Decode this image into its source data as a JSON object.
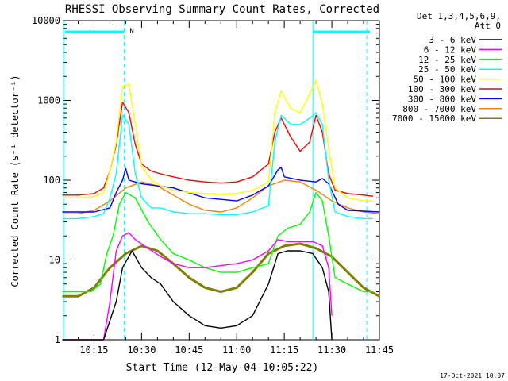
{
  "chart_data": {
    "type": "line",
    "title": "RHESSI Observing Summary Count Rates, Corrected",
    "xlabel": "Start Time (12-May-04 10:05:22)",
    "ylabel": "Corrected Count Rate (s⁻¹ detector⁻¹)",
    "footer": "17-Oct-2021 10:07",
    "y_scale": "log",
    "ylim": [
      1,
      10000
    ],
    "xlim": [
      "10:05:22",
      "11:45:00"
    ],
    "x_ticks": [
      "10:15",
      "10:30",
      "10:45",
      "11:00",
      "11:15",
      "11:30",
      "11:45"
    ],
    "y_ticks": [
      "1",
      "10",
      "100",
      "1000",
      "10000"
    ],
    "legend": {
      "placement": "right",
      "header": [
        "Det 1,3,4,5,6,9,",
        "Att 0"
      ]
    },
    "markers": {
      "dashed_lines": [
        "10:24:30",
        "11:41:00"
      ],
      "solid_lines": [
        "10:05:22",
        "11:24:00"
      ],
      "flag_label": "N"
    },
    "series": [
      {
        "name": "3 - 6 keV",
        "color": "#000000",
        "x": [
          "10:05",
          "10:14",
          "10:18",
          "10:22",
          "10:24",
          "10:27",
          "10:30",
          "10:33",
          "10:36",
          "10:40",
          "10:45",
          "10:50",
          "10:55",
          "11:00",
          "11:05",
          "11:10",
          "11:13",
          "11:16",
          "11:20",
          "11:24",
          "11:27",
          "11:29",
          "11:30"
        ],
        "y": [
          1,
          1,
          1,
          3,
          8,
          13,
          8,
          6,
          5,
          3,
          2,
          1.5,
          1.4,
          1.5,
          2,
          5,
          12,
          13,
          13,
          12,
          8,
          4,
          1
        ]
      },
      {
        "name": "6 - 12 keV",
        "color": "#ff00ff",
        "x": [
          "10:05",
          "10:14",
          "10:18",
          "10:20",
          "10:22",
          "10:24",
          "10:26",
          "10:28",
          "10:32",
          "10:36",
          "10:40",
          "10:45",
          "10:50",
          "10:55",
          "11:00",
          "11:05",
          "11:10",
          "11:13",
          "11:16",
          "11:20",
          "11:24",
          "11:27",
          "11:29",
          "11:30"
        ],
        "y": [
          1,
          1,
          1,
          3,
          13,
          20,
          22,
          18,
          14,
          11,
          9,
          8,
          8,
          8.5,
          9,
          10,
          13,
          18,
          17,
          17,
          17,
          15,
          8,
          2
        ]
      },
      {
        "name": "12 - 25 keV",
        "color": "#00ff00",
        "x": [
          "10:05",
          "10:10",
          "10:14",
          "10:17",
          "10:19",
          "10:21",
          "10:23",
          "10:25",
          "10:28",
          "10:32",
          "10:36",
          "10:40",
          "10:45",
          "10:50",
          "10:55",
          "11:00",
          "11:05",
          "11:10",
          "11:13",
          "11:16",
          "11:20",
          "11:23",
          "11:25",
          "11:27",
          "11:29",
          "11:31",
          "11:35",
          "11:40",
          "11:43"
        ],
        "y": [
          4,
          4,
          4,
          5,
          12,
          20,
          50,
          70,
          60,
          30,
          18,
          12,
          10,
          8,
          7,
          7,
          8,
          9,
          20,
          25,
          28,
          40,
          70,
          55,
          20,
          6,
          5,
          4,
          4
        ]
      },
      {
        "name": "25 - 50 keV",
        "color": "#00ffff",
        "x": [
          "10:05",
          "10:10",
          "10:15",
          "10:18",
          "10:20",
          "10:22",
          "10:24",
          "10:26",
          "10:28",
          "10:30",
          "10:33",
          "10:36",
          "10:40",
          "10:45",
          "10:50",
          "10:55",
          "11:00",
          "11:05",
          "11:10",
          "11:12",
          "11:14",
          "11:17",
          "11:20",
          "11:23",
          "11:25",
          "11:27",
          "11:29",
          "11:31",
          "11:35",
          "11:40",
          "11:43"
        ],
        "y": [
          33,
          33,
          35,
          38,
          60,
          120,
          650,
          500,
          120,
          60,
          45,
          45,
          40,
          38,
          38,
          37,
          37,
          40,
          48,
          300,
          650,
          500,
          500,
          600,
          700,
          500,
          100,
          40,
          35,
          33,
          33
        ]
      },
      {
        "name": "50 - 100 keV",
        "color": "#ffff00",
        "x": [
          "10:05",
          "10:10",
          "10:15",
          "10:18",
          "10:20",
          "10:22",
          "10:24",
          "10:26",
          "10:28",
          "10:30",
          "10:33",
          "10:36",
          "10:40",
          "10:45",
          "10:50",
          "10:55",
          "11:00",
          "11:05",
          "11:10",
          "11:12",
          "11:14",
          "11:17",
          "11:20",
          "11:23",
          "11:25",
          "11:27",
          "11:29",
          "11:31",
          "11:35",
          "11:40",
          "11:43"
        ],
        "y": [
          60,
          60,
          62,
          70,
          130,
          300,
          1500,
          1600,
          500,
          150,
          100,
          85,
          75,
          70,
          68,
          67,
          68,
          75,
          95,
          700,
          1300,
          800,
          700,
          1200,
          1800,
          900,
          250,
          80,
          60,
          55,
          55
        ]
      },
      {
        "name": "100 - 300 keV",
        "color": "#ff0000",
        "x": [
          "10:05",
          "10:10",
          "10:15",
          "10:18",
          "10:20",
          "10:22",
          "10:24",
          "10:26",
          "10:28",
          "10:30",
          "10:33",
          "10:36",
          "10:40",
          "10:45",
          "10:50",
          "10:55",
          "11:00",
          "11:05",
          "11:10",
          "11:12",
          "11:14",
          "11:17",
          "11:20",
          "11:23",
          "11:25",
          "11:27",
          "11:29",
          "11:31",
          "11:35",
          "11:40",
          "11:43"
        ],
        "y": [
          65,
          65,
          68,
          80,
          130,
          280,
          950,
          700,
          280,
          160,
          130,
          120,
          110,
          100,
          95,
          92,
          95,
          110,
          160,
          400,
          600,
          350,
          230,
          300,
          650,
          400,
          120,
          75,
          68,
          65,
          63
        ]
      },
      {
        "name": "300 - 800 keV",
        "color": "#0000ff",
        "x": [
          "10:05",
          "10:15",
          "10:20",
          "10:22",
          "10:24",
          "10:25",
          "10:26",
          "10:30",
          "10:40",
          "10:50",
          "11:00",
          "11:05",
          "11:10",
          "11:13",
          "11:14",
          "11:15",
          "11:20",
          "11:25",
          "11:27",
          "11:29",
          "11:32",
          "11:35",
          "11:45"
        ],
        "y": [
          40,
          40,
          45,
          70,
          100,
          140,
          100,
          90,
          80,
          60,
          55,
          65,
          85,
          135,
          145,
          110,
          100,
          95,
          105,
          90,
          50,
          42,
          40
        ]
      },
      {
        "name": "800 - 7000 keV",
        "color": "#ff8000",
        "x": [
          "10:05",
          "10:10",
          "10:15",
          "10:20",
          "10:25",
          "10:30",
          "10:35",
          "10:40",
          "10:45",
          "10:50",
          "10:55",
          "11:00",
          "11:05",
          "11:10",
          "11:15",
          "11:20",
          "11:25",
          "11:30",
          "11:35",
          "11:40",
          "11:45"
        ],
        "y": [
          38,
          38,
          42,
          55,
          80,
          95,
          85,
          65,
          50,
          42,
          40,
          45,
          60,
          85,
          100,
          95,
          75,
          55,
          45,
          40,
          38
        ]
      },
      {
        "name": "7000 - 15000 keV",
        "color": "#808000",
        "x": [
          "10:05",
          "10:10",
          "10:15",
          "10:20",
          "10:25",
          "10:30",
          "10:35",
          "10:40",
          "10:45",
          "10:50",
          "10:55",
          "11:00",
          "11:05",
          "11:10",
          "11:15",
          "11:20",
          "11:25",
          "11:30",
          "11:35",
          "11:40",
          "11:45"
        ],
        "y": [
          3.5,
          3.5,
          4.5,
          8,
          12,
          15,
          13,
          9,
          6,
          4.5,
          4,
          4.5,
          7,
          12,
          15,
          16,
          14,
          11,
          7,
          4.5,
          3.5
        ]
      }
    ]
  }
}
